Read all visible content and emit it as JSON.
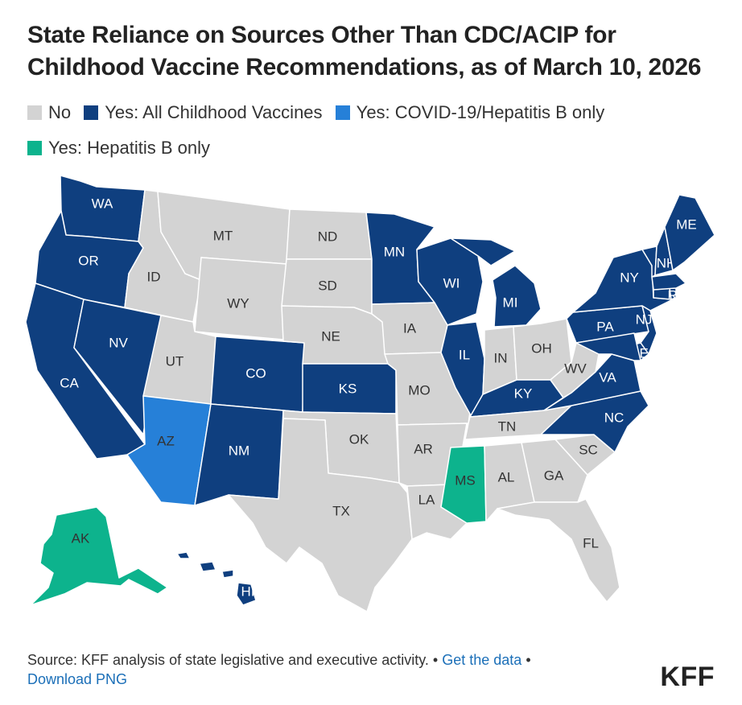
{
  "title": "State Reliance on Sources Other Than CDC/ACIP for Childhood Vaccine Recommendations, as of March 10, 2026",
  "colors": {
    "no": "#d3d3d3",
    "all": "#0f3f7f",
    "covid": "#2680d8",
    "hepb": "#0db38d",
    "link": "#1b6fb8"
  },
  "legend": [
    {
      "key": "no",
      "label": "No"
    },
    {
      "key": "all",
      "label": "Yes: All Childhood Vaccines"
    },
    {
      "key": "covid",
      "label": "Yes: COVID-19/Hepatitis B only"
    },
    {
      "key": "hepb",
      "label": "Yes: Hepatitis B only"
    }
  ],
  "states": [
    {
      "abbr": "WA",
      "cat": "all"
    },
    {
      "abbr": "OR",
      "cat": "all"
    },
    {
      "abbr": "CA",
      "cat": "all"
    },
    {
      "abbr": "NV",
      "cat": "all"
    },
    {
      "abbr": "ID",
      "cat": "no"
    },
    {
      "abbr": "MT",
      "cat": "no"
    },
    {
      "abbr": "WY",
      "cat": "no"
    },
    {
      "abbr": "UT",
      "cat": "no"
    },
    {
      "abbr": "AZ",
      "cat": "covid"
    },
    {
      "abbr": "CO",
      "cat": "all"
    },
    {
      "abbr": "NM",
      "cat": "all"
    },
    {
      "abbr": "ND",
      "cat": "no"
    },
    {
      "abbr": "SD",
      "cat": "no"
    },
    {
      "abbr": "NE",
      "cat": "no"
    },
    {
      "abbr": "KS",
      "cat": "all"
    },
    {
      "abbr": "OK",
      "cat": "no"
    },
    {
      "abbr": "TX",
      "cat": "no"
    },
    {
      "abbr": "MN",
      "cat": "all"
    },
    {
      "abbr": "IA",
      "cat": "no"
    },
    {
      "abbr": "MO",
      "cat": "no"
    },
    {
      "abbr": "AR",
      "cat": "no"
    },
    {
      "abbr": "LA",
      "cat": "no"
    },
    {
      "abbr": "WI",
      "cat": "all"
    },
    {
      "abbr": "IL",
      "cat": "all"
    },
    {
      "abbr": "MI",
      "cat": "all"
    },
    {
      "abbr": "IN",
      "cat": "no"
    },
    {
      "abbr": "OH",
      "cat": "no"
    },
    {
      "abbr": "KY",
      "cat": "all"
    },
    {
      "abbr": "TN",
      "cat": "no"
    },
    {
      "abbr": "MS",
      "cat": "hepb"
    },
    {
      "abbr": "AL",
      "cat": "no"
    },
    {
      "abbr": "GA",
      "cat": "no"
    },
    {
      "abbr": "FL",
      "cat": "no"
    },
    {
      "abbr": "SC",
      "cat": "no"
    },
    {
      "abbr": "NC",
      "cat": "all"
    },
    {
      "abbr": "VA",
      "cat": "all"
    },
    {
      "abbr": "WV",
      "cat": "no"
    },
    {
      "abbr": "PA",
      "cat": "all"
    },
    {
      "abbr": "NY",
      "cat": "all"
    },
    {
      "abbr": "NJ",
      "cat": "all"
    },
    {
      "abbr": "DE",
      "cat": "all"
    },
    {
      "abbr": "MD",
      "cat": "all"
    },
    {
      "abbr": "CT",
      "cat": "all"
    },
    {
      "abbr": "RI",
      "cat": "all"
    },
    {
      "abbr": "MA",
      "cat": "all"
    },
    {
      "abbr": "VT",
      "cat": "all"
    },
    {
      "abbr": "NH",
      "cat": "all"
    },
    {
      "abbr": "ME",
      "cat": "all"
    },
    {
      "abbr": "AK",
      "cat": "hepb"
    },
    {
      "abbr": "HI",
      "cat": "all"
    }
  ],
  "footer": {
    "source": "Source: KFF analysis of state legislative and executive activity.",
    "bullet": "•",
    "get_data": "Get the data",
    "download": "Download PNG"
  },
  "logo": "KFF"
}
